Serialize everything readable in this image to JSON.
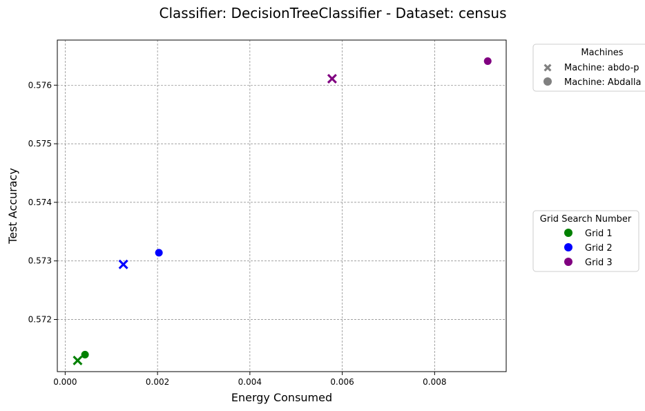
{
  "chart_data": {
    "type": "scatter",
    "title": "Classifier: DecisionTreeClassifier - Dataset: census",
    "xlabel": "Energy Consumed",
    "ylabel": "Test Accuracy",
    "xlim": [
      -0.00017,
      0.00955
    ],
    "ylim": [
      0.57111,
      0.57677
    ],
    "xticks": [
      0.0,
      0.002,
      0.004,
      0.006,
      0.008
    ],
    "xtick_labels": [
      "0.000",
      "0.002",
      "0.004",
      "0.006",
      "0.008"
    ],
    "yticks": [
      0.572,
      0.573,
      0.574,
      0.575,
      0.576
    ],
    "ytick_labels": [
      "0.572",
      "0.573",
      "0.574",
      "0.575",
      "0.576"
    ],
    "grid": true,
    "points": [
      {
        "x": 0.00027,
        "y": 0.5713,
        "grid": "Grid 1",
        "machine": "x"
      },
      {
        "x": 0.00043,
        "y": 0.5714,
        "grid": "Grid 1",
        "machine": "o"
      },
      {
        "x": 0.00126,
        "y": 0.57294,
        "grid": "Grid 2",
        "machine": "x"
      },
      {
        "x": 0.00203,
        "y": 0.57314,
        "grid": "Grid 2",
        "machine": "o"
      },
      {
        "x": 0.00578,
        "y": 0.57611,
        "grid": "Grid 3",
        "machine": "x"
      },
      {
        "x": 0.00915,
        "y": 0.57641,
        "grid": "Grid 3",
        "machine": "o"
      }
    ],
    "legend_machines": {
      "title": "Machines",
      "entries": [
        {
          "marker": "x",
          "label": "Machine: abdo-p"
        },
        {
          "marker": "o",
          "label": "Machine: Abdalla"
        }
      ]
    },
    "legend_grids": {
      "title": "Grid Search Number",
      "entries": [
        {
          "label": "Grid 1",
          "color": "#008000"
        },
        {
          "label": "Grid 2",
          "color": "#0000ff"
        },
        {
          "label": "Grid 3",
          "color": "#800080"
        }
      ]
    },
    "colors": {
      "Grid 1": "#008000",
      "Grid 2": "#0000ff",
      "Grid 3": "#800080",
      "legend_marker": "#808080"
    }
  }
}
